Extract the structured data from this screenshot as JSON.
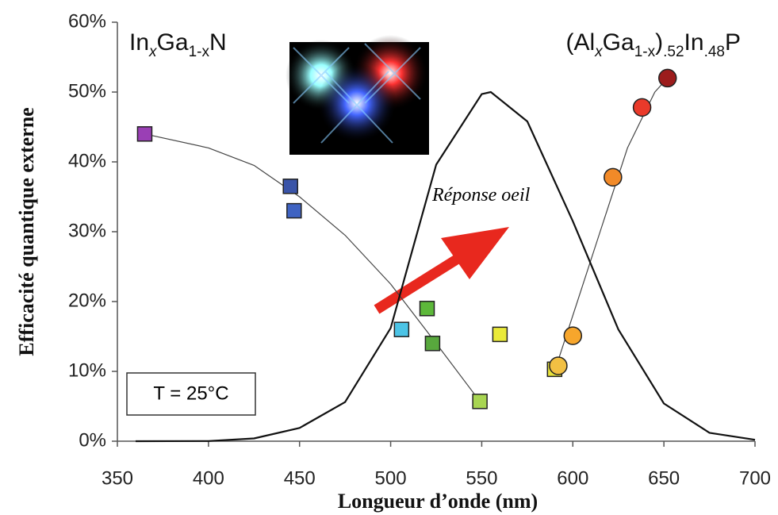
{
  "chart_data": {
    "type": "scatter",
    "xlabel": "Longueur d’onde (nm)",
    "ylabel": "Efficacité quantique externe",
    "xlim": [
      350,
      700
    ],
    "ylim": [
      0,
      60
    ],
    "xticks": [
      350,
      400,
      450,
      500,
      550,
      600,
      650,
      700
    ],
    "yticks": [
      {
        "value": 0,
        "label": "0%"
      },
      {
        "value": 10,
        "label": "10%"
      },
      {
        "value": 20,
        "label": "20%"
      },
      {
        "value": 30,
        "label": "30%"
      },
      {
        "value": 40,
        "label": "40%"
      },
      {
        "value": 50,
        "label": "50%"
      },
      {
        "value": 60,
        "label": "60%"
      }
    ],
    "series": [
      {
        "marker": "square",
        "x": [
          365,
          445,
          447,
          506,
          520,
          523,
          549,
          560,
          590
        ],
        "values": [
          44,
          36.5,
          33,
          16,
          19,
          14,
          5.7,
          15.3,
          10.3
        ],
        "colors": [
          "#9a3fb5",
          "#3a54a8",
          "#3f63c2",
          "#4cc4e6",
          "#5db83a",
          "#58a83d",
          "#a8d552",
          "#eaea3a",
          "#e8e23a"
        ]
      },
      {
        "marker": "circle",
        "x": [
          592,
          600,
          622,
          638,
          652
        ],
        "values": [
          10.8,
          15.1,
          37.8,
          47.8,
          52
        ],
        "colors": [
          "#f2c043",
          "#f7a62c",
          "#f28a28",
          "#ea3a2a",
          "#9c1c1c"
        ]
      }
    ],
    "lines": [
      {
        "x": [
          365,
          400,
          425,
          450,
          475,
          500,
          525,
          549
        ],
        "values": [
          44,
          42,
          39.5,
          35,
          29.5,
          22.5,
          14,
          5.7
        ],
        "color": "#444444"
      },
      {
        "x": [
          590,
          600,
          615,
          630,
          645,
          652
        ],
        "values": [
          10,
          18,
          30,
          42,
          50,
          52
        ],
        "color": "#444444"
      },
      {
        "x": [
          360,
          400,
          425,
          450,
          475,
          500,
          525,
          550,
          555,
          575,
          600,
          625,
          650,
          675,
          700
        ],
        "values": [
          0,
          0.02,
          0.4,
          1.9,
          5.6,
          16.2,
          39.6,
          49.7,
          50,
          45.8,
          31.5,
          16,
          5.4,
          1.2,
          0.2
        ],
        "color": "#111111"
      }
    ],
    "annotations": {
      "left_formula": [
        {
          "text": "In",
          "sub": false
        },
        {
          "text": "x",
          "sub": true
        },
        {
          "text": "Ga",
          "sub": false
        },
        {
          "text": "1-x",
          "sub": true
        },
        {
          "text": "N",
          "sub": false
        }
      ],
      "right_formula": [
        {
          "text": "(Al",
          "sub": false
        },
        {
          "text": "x",
          "sub": true
        },
        {
          "text": "Ga",
          "sub": false
        },
        {
          "text": "1-x",
          "sub": true
        },
        {
          "text": ")",
          "sub": false
        },
        {
          "text": ".52",
          "sub": true
        },
        {
          "text": "In",
          "sub": false
        },
        {
          "text": ".48",
          "sub": true
        },
        {
          "text": "P",
          "sub": false
        }
      ],
      "eye": "Réponse oeil",
      "temperature": "T = 25°C"
    }
  }
}
